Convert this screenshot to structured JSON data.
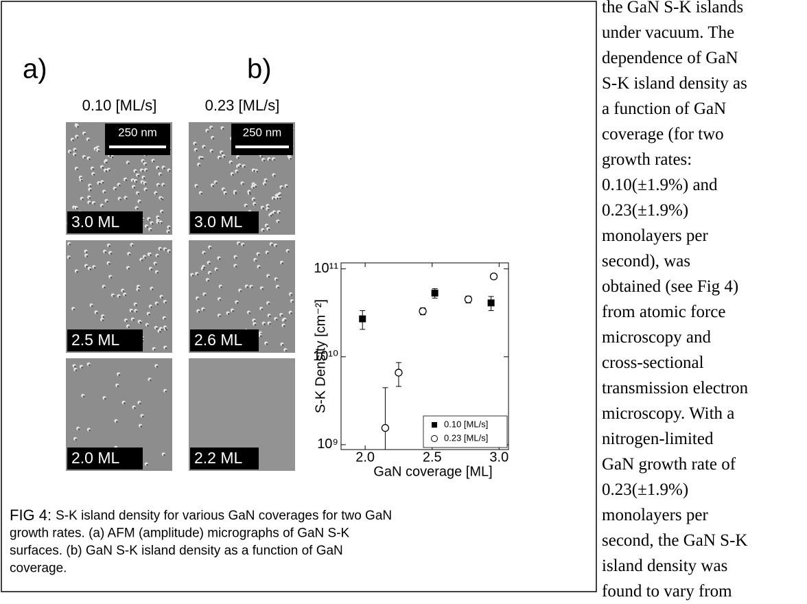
{
  "figure": {
    "panel_a": "a)",
    "panel_b": "b)",
    "columns": [
      {
        "rate": "0.10 [ML/s]",
        "scale_bar": "250 nm",
        "images": [
          "3.0 ML",
          "2.5 ML",
          "2.0 ML"
        ]
      },
      {
        "rate": "0.23 [ML/s]",
        "scale_bar": "250 nm",
        "images": [
          "3.0 ML",
          "2.6 ML",
          "2.2 ML"
        ]
      }
    ],
    "caption": {
      "label": "FIG 4:",
      "lines": [
        "S-K island density for various GaN coverages for two GaN",
        "growth rates. (a) AFM (amplitude) micrographs of GaN S-K",
        "surfaces.  (b) GaN S-K island density as a function of GaN",
        "coverage."
      ]
    }
  },
  "chart_data": {
    "type": "scatter",
    "x_label": "GaN coverage [ML]",
    "y_label": "S-K Density [cm⁻²]",
    "log_y": true,
    "xlim": [
      1.82,
      3.07
    ],
    "ylim": [
      880000000,
      117000000000
    ],
    "xticks": [
      {
        "value": 2,
        "label": "2.0"
      },
      2.5,
      {
        "value": 3,
        "label": "3.0"
      }
    ],
    "yticks": [
      {
        "value": 1000000000,
        "label": "10⁹"
      },
      {
        "value": 10000000000,
        "label": "10¹⁰"
      },
      {
        "value": 100000000000,
        "label": "10¹¹"
      }
    ],
    "legend": "lower right",
    "series": [
      {
        "name": "0.10 [ML/s]",
        "marker": "filled-square",
        "color": "#000000",
        "x": [
          1.98,
          2.52,
          2.94
        ],
        "values": [
          27000000000,
          53000000000,
          41000000000
        ],
        "yerr": [
          6500000000,
          6500000000,
          7500000000
        ]
      },
      {
        "name": "0.23 [ML/s]",
        "marker": "open-circle",
        "color": "#000000",
        "x": [
          2.15,
          2.25,
          2.43,
          2.77,
          2.96
        ],
        "values": [
          1550000000,
          6600000000,
          33000000000,
          45000000000,
          82000000000
        ],
        "yerr": [
          2900000000,
          2000000000,
          3000000000,
          4000000000,
          5000000000
        ]
      }
    ]
  },
  "body_text": {
    "lines": [
      "the GaN S-K  islands",
      "under vacuum.  The",
      "dependence of GaN",
      "S-K island density as",
      "a function of GaN",
      "coverage (for two",
      "growth rates:",
      "0.10(±1.9%) and",
      "0.23(±1.9%)",
      "monolayers per",
      "second), was",
      "obtained (see Fig 4)",
      "from atomic force",
      "microscopy and",
      "cross-sectional",
      "transmission electron",
      "microscopy.  With a",
      "nitrogen-limited",
      "GaN growth rate of",
      "0.23(±1.9%)",
      "monolayers per",
      "second, the GaN S-K",
      "island density was",
      "found to vary from"
    ]
  }
}
